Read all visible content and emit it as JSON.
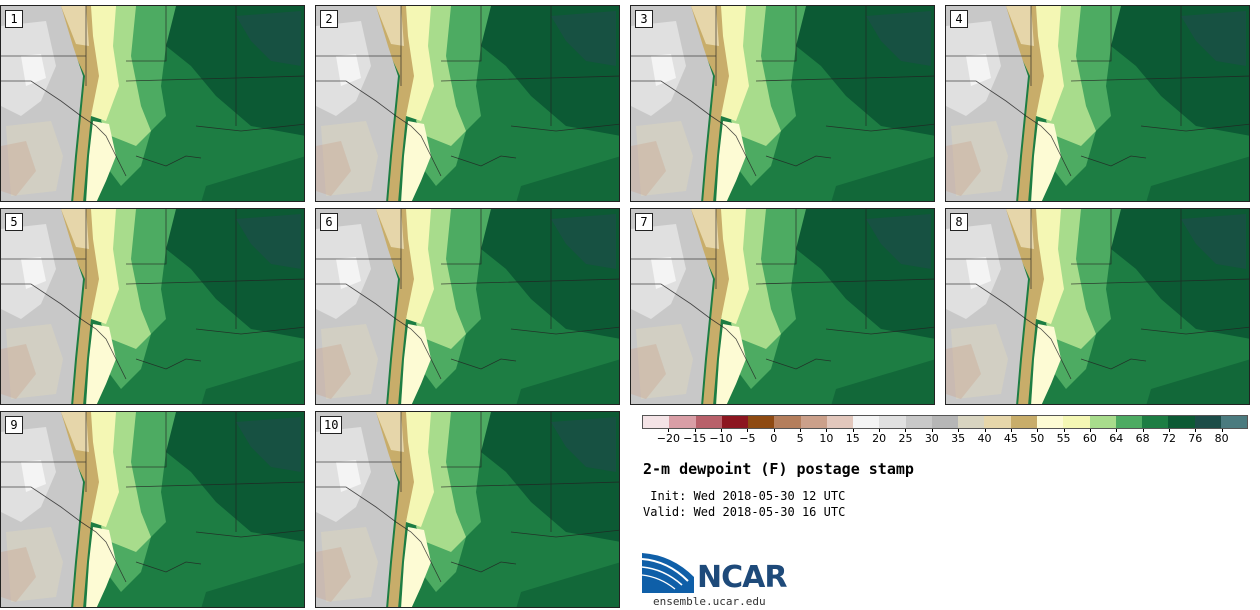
{
  "panels": [
    {
      "label": "1"
    },
    {
      "label": "2"
    },
    {
      "label": "3"
    },
    {
      "label": "4"
    },
    {
      "label": "5"
    },
    {
      "label": "6"
    },
    {
      "label": "7"
    },
    {
      "label": "8"
    },
    {
      "label": "9"
    },
    {
      "label": "10"
    }
  ],
  "colorbar": {
    "ticks": [
      "−20",
      "−15",
      "−10",
      "−5",
      "0",
      "5",
      "10",
      "15",
      "20",
      "25",
      "30",
      "35",
      "40",
      "45",
      "50",
      "55",
      "60",
      "64",
      "68",
      "72",
      "76",
      "80"
    ],
    "colors": [
      "#f4e3e6",
      "#d99ea6",
      "#b8606a",
      "#8c1620",
      "#8e4a12",
      "#b47e5c",
      "#cba08a",
      "#e2c7bc",
      "#f4f4f4",
      "#e0e0e0",
      "#c8c8c8",
      "#b6b6b6",
      "#d8d4c0",
      "#e6d6aa",
      "#c8ad6a",
      "#fdfbd4",
      "#f4f7b4",
      "#a8dc8c",
      "#4dab62",
      "#1d7d43",
      "#0c5a34",
      "#1c4d48",
      "#4b7b7f"
    ]
  },
  "title": "2-m dewpoint (F) postage stamp",
  "init": " Init: Wed 2018-05-30 12 UTC",
  "valid": "Valid: Wed 2018-05-30 16 UTC",
  "logo": {
    "name": "ncar-logo",
    "text": "NCAR"
  },
  "site": "ensemble.ucar.edu"
}
